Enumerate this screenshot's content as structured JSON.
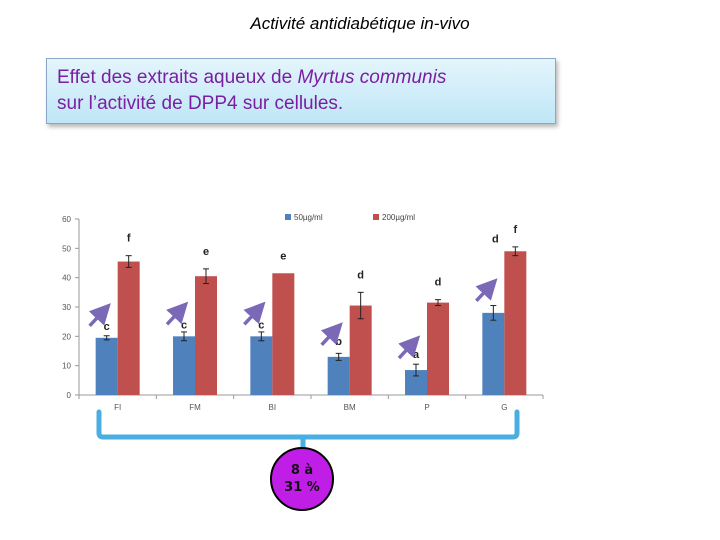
{
  "page": {
    "title": "Activité antidiabétique  in-vivo",
    "subtitle_part1": "Effet des extraits aqueux de ",
    "subtitle_italic": "Myrtus communis",
    "subtitle_part2": "sur l’activité de DPP4 sur cellules.",
    "badge_line1": "8 à",
    "badge_line2": "31 %",
    "badge_color": "#c01ee6"
  },
  "chart_data": {
    "type": "bar",
    "categories": [
      "FI",
      "FM",
      "BI",
      "BM",
      "P",
      "G"
    ],
    "ylim": [
      0,
      60
    ],
    "yticks": [
      0,
      10,
      20,
      30,
      40,
      50,
      60
    ],
    "grid": false,
    "legend_position": "top",
    "series": [
      {
        "name": "50µg/ml",
        "color": "#4f81bd",
        "values": [
          19.5,
          20,
          20,
          13,
          8.5,
          28
        ],
        "errors": [
          0.7,
          1.5,
          1.5,
          1.2,
          2,
          2.5
        ],
        "letters": [
          "c",
          "c",
          "c",
          "b",
          "a",
          "d"
        ]
      },
      {
        "name": "200µg/ml",
        "color": "#c0504d",
        "values": [
          45.5,
          40.5,
          41.5,
          30.5,
          31.5,
          49
        ],
        "errors": [
          2,
          2.5,
          0,
          4.5,
          1,
          1.5
        ],
        "letters": [
          "f",
          "e",
          "e",
          "d",
          "d",
          "f"
        ]
      }
    ],
    "arrow_color": "#7b68b6"
  }
}
